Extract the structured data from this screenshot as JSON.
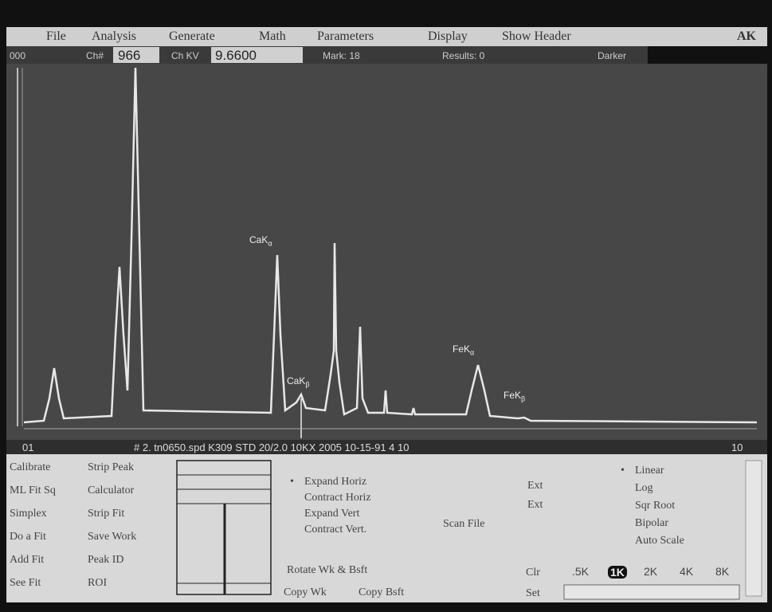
{
  "menu": [
    "File",
    "Analysis",
    "Generate",
    "Math",
    "Parameters",
    "Display",
    "Show Header"
  ],
  "menu_icon": "AK",
  "status": {
    "range": "000",
    "ch_label": "Ch#",
    "ch_value": "966",
    "kv_label": "Ch KV",
    "kv_value": "9.6600",
    "mark": "Mark: 18",
    "results": "Results: 0",
    "darker": "Darker"
  },
  "peaks": [
    {
      "element": "CaK",
      "line": "α"
    },
    {
      "element": "CaK",
      "line": "β"
    },
    {
      "element": "FeK",
      "line": "α"
    },
    {
      "element": "FeK",
      "line": "β"
    }
  ],
  "axis": {
    "start": "01",
    "info": "# 2. tn0650.spd  K309 STD 20/2.0 10KX 2005 10-15-91 4 10",
    "end": "10"
  },
  "tools": [
    [
      "Calibrate",
      "Strip Peak"
    ],
    [
      "ML Fit Sq",
      "Calculator"
    ],
    [
      "Simplex",
      "Strip Fit"
    ],
    [
      "Do a Fit",
      "Save Work"
    ],
    [
      "Add Fit",
      "Peak ID"
    ],
    [
      "See Fit",
      "ROI"
    ]
  ],
  "view": {
    "items": [
      {
        "label": "Expand Horiz",
        "selected": true
      },
      {
        "label": "Contract Horiz"
      },
      {
        "label": "Expand Vert"
      },
      {
        "label": "Contract Vert."
      }
    ],
    "ext": [
      "Ext",
      "Ext"
    ],
    "scan": "Scan File",
    "rotate": "Rotate Wk & Bsft",
    "copy_wk": "Copy Wk",
    "copy_bsft": "Copy Bsft",
    "clr": "Clr",
    "set": "Set"
  },
  "scale_modes": [
    {
      "label": "Linear",
      "selected": true
    },
    {
      "label": "Log"
    },
    {
      "label": "Sqr Root"
    },
    {
      "label": "Bipolar"
    },
    {
      "label": "Auto Scale"
    }
  ],
  "ranges": [
    {
      "label": ".5K"
    },
    {
      "label": "1K",
      "selected": true
    },
    {
      "label": "2K"
    },
    {
      "label": "4K"
    },
    {
      "label": "8K"
    }
  ]
}
